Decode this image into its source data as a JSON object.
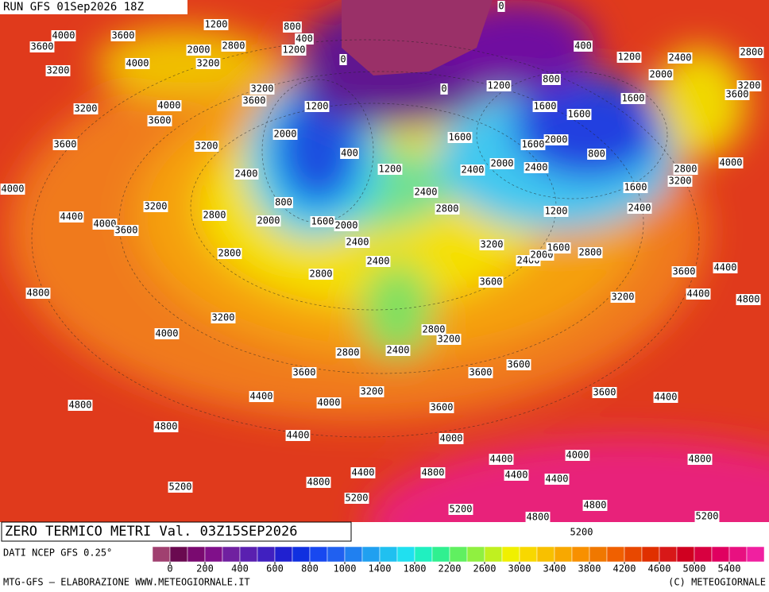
{
  "header": {
    "run": "RUN GFS 01Sep2026 18Z"
  },
  "title": "ZERO TERMICO METRI Val. 03Z15SEP2026",
  "source": "DATI NCEP GFS 0.25°",
  "footer": {
    "left": "MTG-GFS — ELABORAZIONE WWW.METEOGIORNALE.IT",
    "right": "(C) METEOGIORNALE"
  },
  "colorbar": {
    "colors": [
      "#a04070",
      "#6a0a50",
      "#7a0a70",
      "#80108a",
      "#7020a0",
      "#5a20b0",
      "#4020c0",
      "#2020d0",
      "#1030e0",
      "#1848f0",
      "#2060f0",
      "#2080f0",
      "#20a0f0",
      "#20c0f0",
      "#20e0f0",
      "#20f0c0",
      "#30f090",
      "#60f060",
      "#90f040",
      "#c0f020",
      "#f0f000",
      "#f8d800",
      "#f8c000",
      "#f8a800",
      "#f89000",
      "#f07800",
      "#f06000",
      "#e84800",
      "#e03000",
      "#d81818",
      "#d00020",
      "#d80040",
      "#e00060",
      "#e81080",
      "#f020a0"
    ],
    "ticks": [
      0,
      200,
      400,
      600,
      800,
      1000,
      1400,
      1800,
      2200,
      2600,
      3000,
      3400,
      3800,
      4200,
      4600,
      5000,
      5400
    ]
  },
  "contour_labels": [
    0,
    1200,
    800,
    400,
    4000,
    3600,
    3600,
    2000,
    2800,
    1200,
    0,
    400,
    1200,
    2400,
    2800,
    4000,
    3200,
    3200,
    800,
    1200,
    2000,
    3200,
    3600,
    0,
    3200,
    3600,
    4000,
    3200,
    1200,
    1600,
    1600,
    1600,
    3600,
    2000,
    1600,
    1600,
    2000,
    3600,
    3200,
    400,
    800,
    2400,
    2000,
    2400,
    2800,
    4000,
    3200,
    1200,
    2400,
    1600,
    4000,
    2400,
    3200,
    800,
    2800,
    1200,
    2400,
    4400,
    4000,
    3600,
    2800,
    2000,
    1600,
    2000,
    2400,
    3200,
    2400,
    2000,
    1600,
    2800,
    2800,
    2400,
    2800,
    3600,
    4400,
    3600,
    4800,
    3200,
    4400,
    4800,
    3200,
    2800,
    3200,
    4000,
    2800,
    2400,
    3600,
    3600,
    3600,
    3200,
    3600,
    4400,
    4000,
    4400,
    3600,
    4800,
    4800,
    4400,
    4000,
    4000,
    4400,
    4800,
    4400,
    4800,
    4400,
    4400,
    4800,
    5200,
    5200,
    4800,
    5200,
    4800,
    5200,
    5200
  ]
}
